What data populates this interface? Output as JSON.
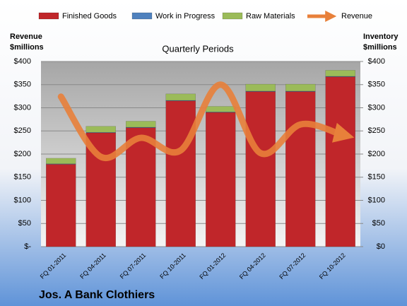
{
  "chart_data": {
    "type": "stacked_bar_line",
    "title": "Jos. A Bank Clothiers",
    "subtitle": "Quarterly Periods",
    "y_label": [
      "Revenue",
      "$millions"
    ],
    "y2_label": [
      "Inventory",
      "$millions"
    ],
    "categories": [
      "FQ 01-2011",
      "FQ 04-2011",
      "FQ 07-2011",
      "FQ 10-2011",
      "FQ 01-2012",
      "FQ 04-2012",
      "FQ 07-2012",
      "FQ 10-2012"
    ],
    "series": [
      {
        "name": "Finished Goods",
        "color": "#c0262a",
        "kind": "bar",
        "axis": "y2",
        "values": [
          178,
          246,
          257,
          315,
          290,
          335,
          335,
          367
        ]
      },
      {
        "name": "Work in Progress",
        "color": "#4f81bd",
        "kind": "bar",
        "axis": "y2",
        "values": [
          1,
          1,
          1,
          1,
          1,
          1,
          1,
          1
        ]
      },
      {
        "name": "Raw Materials",
        "color": "#9bbb59",
        "kind": "bar",
        "axis": "y2",
        "values": [
          12,
          13,
          13,
          14,
          12,
          15,
          15,
          13
        ]
      },
      {
        "name": "Revenue",
        "color": "#e8803a",
        "kind": "line",
        "axis": "y",
        "values": [
          324,
          194,
          235,
          208,
          350,
          202,
          264,
          243
        ]
      }
    ],
    "ylim": [
      0,
      400
    ],
    "yticks": [
      {
        "value": 0,
        "label": "$-"
      },
      {
        "value": 50,
        "label": "$50"
      },
      {
        "value": 100,
        "label": "$100"
      },
      {
        "value": 150,
        "label": "$150"
      },
      {
        "value": 200,
        "label": "$200"
      },
      {
        "value": 250,
        "label": "$250"
      },
      {
        "value": 300,
        "label": "$300"
      },
      {
        "value": 350,
        "label": "$350"
      },
      {
        "value": 400,
        "label": "$400"
      }
    ],
    "y2lim": [
      0,
      400
    ],
    "y2ticks": [
      {
        "value": 0,
        "label": "$0"
      },
      {
        "value": 50,
        "label": "$50"
      },
      {
        "value": 100,
        "label": "$100"
      },
      {
        "value": 150,
        "label": "$150"
      },
      {
        "value": 200,
        "label": "$200"
      },
      {
        "value": 250,
        "label": "$250"
      },
      {
        "value": 300,
        "label": "$300"
      },
      {
        "value": 350,
        "label": "$350"
      },
      {
        "value": 400,
        "label": "$400"
      }
    ],
    "grid": true
  }
}
